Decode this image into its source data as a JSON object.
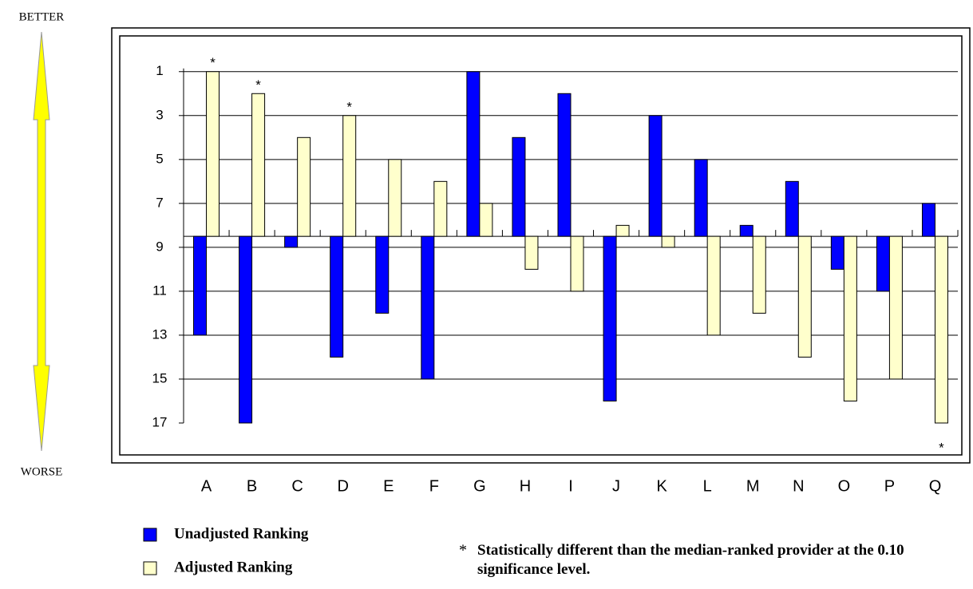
{
  "chart_data": {
    "type": "bar",
    "categories": [
      "A",
      "B",
      "C",
      "D",
      "E",
      "F",
      "G",
      "H",
      "I",
      "J",
      "K",
      "L",
      "M",
      "N",
      "O",
      "P",
      "Q"
    ],
    "series": [
      {
        "name": "Unadjusted Ranking",
        "color": "#0000ff",
        "values": [
          13,
          17,
          9,
          14,
          12,
          15,
          1,
          4,
          2,
          16,
          3,
          5,
          8,
          6,
          10,
          11,
          7
        ]
      },
      {
        "name": "Adjusted Ranking",
        "color": "#ffffcc",
        "values": [
          1,
          2,
          4,
          3,
          5,
          6,
          7,
          10,
          11,
          8,
          9,
          13,
          12,
          14,
          16,
          15,
          17
        ],
        "significant": [
          true,
          true,
          false,
          true,
          false,
          false,
          false,
          false,
          false,
          false,
          false,
          false,
          false,
          false,
          false,
          false,
          true
        ]
      }
    ],
    "baseline": 8.5,
    "ylim": [
      17,
      0.5
    ],
    "yticks": [
      1,
      3,
      5,
      7,
      9,
      11,
      13,
      15,
      17
    ],
    "grid": true,
    "better_label": "BETTER",
    "worse_label": "WORSE",
    "significance_symbol": "*",
    "footnote": "Statistically different than the median-ranked provider at the 0.10 significance level."
  }
}
